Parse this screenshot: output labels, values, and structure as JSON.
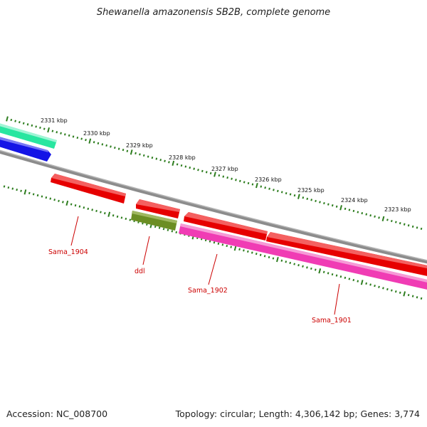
{
  "title": "Shewanella amazonensis SB2B, complete genome",
  "footer": {
    "accession": "Accession: NC_008700",
    "summary": "Topology: circular; Length: 4,306,142 bp; Genes: 3,774"
  },
  "ruler": {
    "labels": [
      "2331 kbp",
      "2330 kbp",
      "2329 kbp",
      "2328 kbp",
      "2327 kbp",
      "2326 kbp",
      "2325 kbp",
      "2324 kbp",
      "2323 kbp"
    ]
  },
  "genes": [
    {
      "name": "Sama_1904",
      "color": "#e60000",
      "strand": "-"
    },
    {
      "name": "ddl",
      "color": "#e60000",
      "strand": "-"
    },
    {
      "name": "Sama_1902",
      "color": "#e60000",
      "strand": "-"
    },
    {
      "name": "Sama_1901",
      "color": "#e60000",
      "strand": "-"
    }
  ],
  "colors": {
    "backbone": "#8c8c8c",
    "ticks": "#2d7d1e",
    "gene_red": "#e60000",
    "cds_pink": "#f03cb4",
    "cds_olive": "#6b8e23",
    "cds_blue": "#1414e6",
    "cds_teal": "#28e6a0",
    "label_red": "#cc0000"
  }
}
